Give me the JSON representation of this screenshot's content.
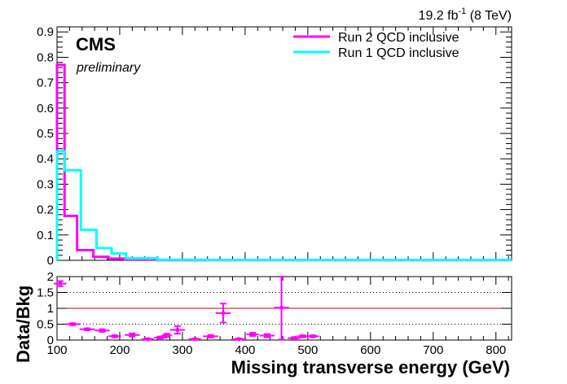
{
  "chart_data": [
    {
      "type": "step",
      "lumi": {
        "value": "19.2 fb",
        "sup": "-1",
        "energy": "(8 TeV)"
      },
      "experiment": "CMS",
      "status": "preliminary",
      "xlim": [
        100,
        825
      ],
      "ylim": [
        0,
        0.92
      ],
      "y_ticks": [
        0,
        0.1,
        0.2,
        0.3,
        0.4,
        0.5,
        0.6,
        0.7,
        0.8,
        0.9
      ],
      "y_tick_labels": [
        "0",
        "0.1",
        "0.2",
        "0.3",
        "0.4",
        "0.5",
        "0.6",
        "0.7",
        "0.8",
        "0.9"
      ],
      "legend_position": "top-right",
      "series": [
        {
          "name": "Run 2 QCD inclusive",
          "color": "#ff00ff",
          "bins": [
            [
              100,
              112,
              0.77
            ],
            [
              112,
              132,
              0.175
            ],
            [
              132,
              158,
              0.04
            ],
            [
              158,
              182,
              0.014
            ],
            [
              182,
              208,
              0.007
            ],
            [
              208,
              260,
              0.004
            ],
            [
              260,
              825,
              0.001
            ]
          ]
        },
        {
          "name": "Run 1 QCD inclusive",
          "color": "#00ffff",
          "bins": [
            [
              100,
              112,
              0.43
            ],
            [
              112,
              138,
              0.355
            ],
            [
              138,
              163,
              0.12
            ],
            [
              163,
              187,
              0.048
            ],
            [
              187,
              210,
              0.027
            ],
            [
              210,
              260,
              0.008
            ],
            [
              260,
              340,
              0.002
            ],
            [
              340,
              825,
              0.001
            ]
          ]
        }
      ]
    },
    {
      "type": "scatter",
      "xlabel": "Missing transverse energy (GeV)",
      "ylabel": "Data/Bkg",
      "xlim": [
        100,
        825
      ],
      "ylim": [
        0,
        2
      ],
      "x_ticks": [
        100,
        200,
        300,
        400,
        500,
        600,
        700,
        800
      ],
      "x_tick_labels": [
        "100",
        "200",
        "300",
        "400",
        "500",
        "600",
        "700",
        "800"
      ],
      "y_ticks": [
        0,
        0.5,
        1,
        1.5,
        2
      ],
      "y_tick_labels": [
        "0",
        "0.5",
        "1",
        "1.5",
        "2"
      ],
      "reference_line": 1,
      "dotted_lines": [
        0.5,
        1.5
      ],
      "color": "#ff00ff",
      "points": [
        {
          "x": 105,
          "xerr": 10,
          "y": 1.78,
          "yerr": 0.08
        },
        {
          "x": 125,
          "xerr": 12,
          "y": 0.5,
          "yerr": 0.03
        },
        {
          "x": 148,
          "xerr": 12,
          "y": 0.34,
          "yerr": 0.03
        },
        {
          "x": 172,
          "xerr": 12,
          "y": 0.3,
          "yerr": 0.04
        },
        {
          "x": 192,
          "xerr": 10,
          "y": 0.12,
          "yerr": 0.03
        },
        {
          "x": 220,
          "xerr": 12,
          "y": 0.16,
          "yerr": 0.05
        },
        {
          "x": 245,
          "xerr": 10,
          "y": 0.03,
          "yerr": 0.02
        },
        {
          "x": 265,
          "xerr": 10,
          "y": 0.08,
          "yerr": 0.03
        },
        {
          "x": 275,
          "xerr": 8,
          "y": 0.15,
          "yerr": 0.05
        },
        {
          "x": 292,
          "xerr": 12,
          "y": 0.32,
          "yerr": 0.12
        },
        {
          "x": 320,
          "xerr": 10,
          "y": 0.03,
          "yerr": 0.02
        },
        {
          "x": 345,
          "xerr": 12,
          "y": 0.12,
          "yerr": 0.04
        },
        {
          "x": 365,
          "xerr": 12,
          "y": 0.85,
          "yerr": 0.3
        },
        {
          "x": 390,
          "xerr": 12,
          "y": 0.03,
          "yerr": 0.02
        },
        {
          "x": 412,
          "xerr": 10,
          "y": 0.18,
          "yerr": 0.05
        },
        {
          "x": 435,
          "xerr": 12,
          "y": 0.14,
          "yerr": 0.05
        },
        {
          "x": 458,
          "xerr": 12,
          "y": 1.02,
          "yerr": 1.0
        },
        {
          "x": 478,
          "xerr": 10,
          "y": 0.06,
          "yerr": 0.03
        },
        {
          "x": 492,
          "xerr": 10,
          "y": 0.12,
          "yerr": 0.03
        },
        {
          "x": 508,
          "xerr": 10,
          "y": 0.12,
          "yerr": 0.03
        }
      ]
    }
  ]
}
